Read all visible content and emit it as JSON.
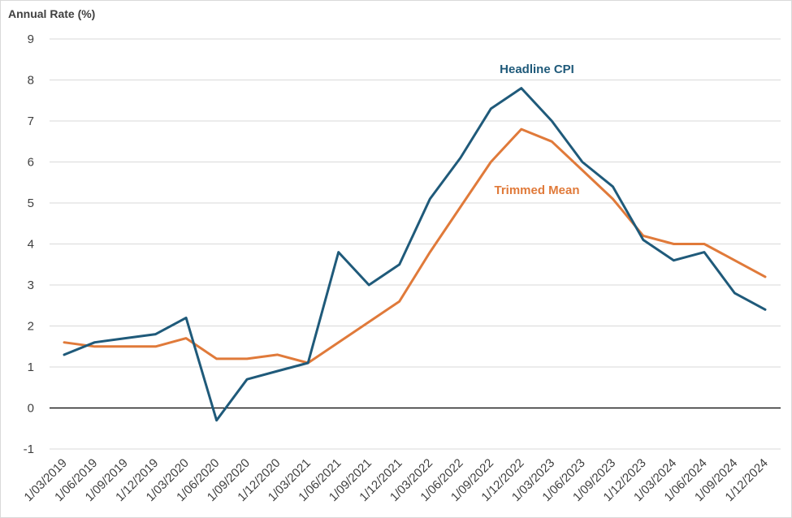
{
  "chart_data": {
    "type": "line",
    "title": "",
    "ylabel": "Annual Rate (%)",
    "xlabel": "",
    "ylim": [
      -1,
      9
    ],
    "yticks": [
      -1,
      0,
      1,
      2,
      3,
      4,
      5,
      6,
      7,
      8,
      9
    ],
    "grid": true,
    "legend": "inline labels",
    "categories": [
      "1/03/2019",
      "1/06/2019",
      "1/09/2019",
      "1/12/2019",
      "1/03/2020",
      "1/06/2020",
      "1/09/2020",
      "1/12/2020",
      "1/03/2021",
      "1/06/2021",
      "1/09/2021",
      "1/12/2021",
      "1/03/2022",
      "1/06/2022",
      "1/09/2022",
      "1/12/2022",
      "1/03/2023",
      "1/06/2023",
      "1/09/2023",
      "1/12/2023",
      "1/03/2024",
      "1/06/2024",
      "1/09/2024",
      "1/12/2024"
    ],
    "series": [
      {
        "name": "Headline CPI",
        "color": "#1f5a7a",
        "values": [
          1.3,
          1.6,
          1.7,
          1.8,
          2.2,
          -0.3,
          0.7,
          0.9,
          1.1,
          3.8,
          3.0,
          3.5,
          5.1,
          6.1,
          7.3,
          7.8,
          7.0,
          6.0,
          5.4,
          4.1,
          3.6,
          3.8,
          2.8,
          2.4
        ]
      },
      {
        "name": "Trimmed Mean",
        "color": "#e07a3a",
        "values": [
          1.6,
          1.5,
          1.5,
          1.5,
          1.7,
          1.2,
          1.2,
          1.3,
          1.1,
          1.6,
          2.1,
          2.6,
          3.8,
          4.9,
          6.0,
          6.8,
          6.5,
          5.8,
          5.1,
          4.2,
          4.0,
          4.0,
          3.6,
          3.2
        ]
      }
    ]
  }
}
